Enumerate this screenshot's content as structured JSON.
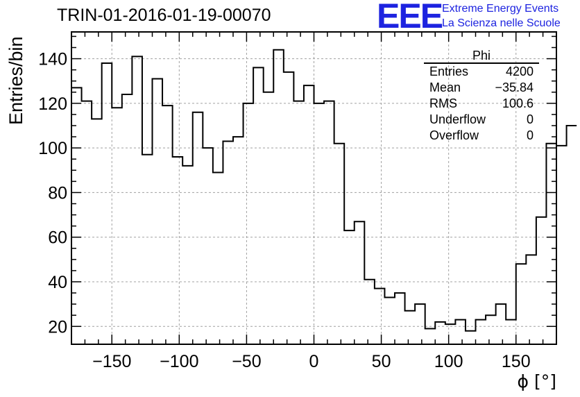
{
  "header": {
    "run_title": "TRIN-01-2016-01-19-00070",
    "logo_text": "EEE",
    "logo_line1": "Extreme Energy Events",
    "logo_line2": "La Scienza nelle Scuole"
  },
  "stats": {
    "title": "Phi",
    "rows": [
      {
        "label": "Entries",
        "value": "4200"
      },
      {
        "label": "Mean",
        "value": "−35.84"
      },
      {
        "label": "RMS",
        "value": "100.6"
      },
      {
        "label": "Underflow",
        "value": "0"
      },
      {
        "label": "Overflow",
        "value": "0"
      }
    ]
  },
  "colors": {
    "logo": "#1d23e0",
    "line": "#000000",
    "grid": "#a0a0a0"
  },
  "chart_data": {
    "type": "histogram",
    "title": "TRIN-01-2016-01-19-00070",
    "xlabel": "ϕ [°]",
    "ylabel": "Entries/bin",
    "xlim": [
      -180,
      180
    ],
    "ylim": [
      12,
      152
    ],
    "grid": true,
    "bin_edges_start": -180,
    "bin_width": 7.5,
    "values": [
      127,
      121,
      113,
      138,
      118,
      124,
      141,
      97,
      131,
      119,
      96,
      92,
      116,
      100,
      89,
      103,
      105,
      120,
      136,
      125,
      144,
      134,
      121,
      128,
      120,
      121,
      102,
      63,
      67,
      41,
      37,
      33,
      35,
      27,
      30,
      19,
      22,
      21,
      23,
      18,
      23,
      25,
      30,
      23,
      48,
      52,
      69,
      102,
      101,
      110
    ],
    "x_ticks": [
      -150,
      -100,
      -50,
      0,
      50,
      100,
      150
    ],
    "x_tick_labels": [
      "−150",
      "−100",
      "−50",
      "0",
      "50",
      "100",
      "150"
    ],
    "y_ticks": [
      20,
      40,
      60,
      80,
      100,
      120,
      140
    ],
    "y_tick_labels": [
      "20",
      "40",
      "60",
      "80",
      "100",
      "120",
      "140"
    ]
  }
}
